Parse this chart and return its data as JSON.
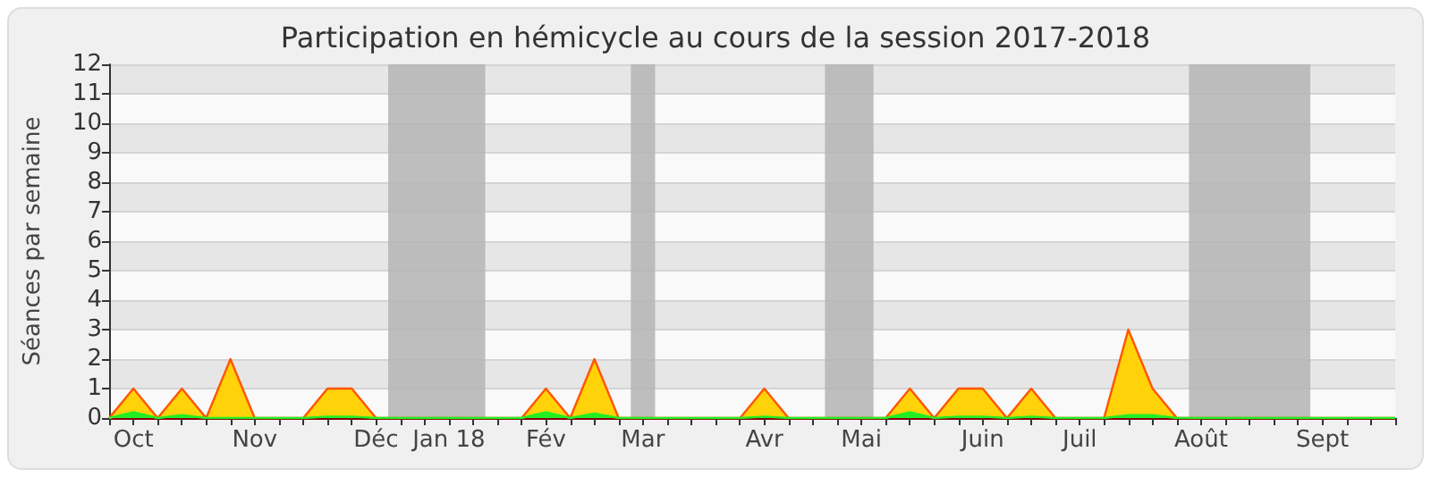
{
  "chart_data": {
    "type": "area",
    "title": "Participation en hémicycle au cours de la session 2017-2018",
    "ylabel": "Séances par semaine",
    "x": [
      "2017-09-28",
      "2017-10-05",
      "2017-10-12",
      "2017-10-19",
      "2017-10-26",
      "2017-11-02",
      "2017-11-09",
      "2017-11-16",
      "2017-11-23",
      "2017-11-30",
      "2017-12-07",
      "2017-12-14",
      "2017-12-21",
      "2017-12-28",
      "2018-01-04",
      "2018-01-11",
      "2018-01-18",
      "2018-01-25",
      "2018-02-01",
      "2018-02-08",
      "2018-02-15",
      "2018-02-22",
      "2018-03-01",
      "2018-03-08",
      "2018-03-15",
      "2018-03-22",
      "2018-03-29",
      "2018-04-05",
      "2018-04-12",
      "2018-04-19",
      "2018-04-26",
      "2018-05-03",
      "2018-05-10",
      "2018-05-17",
      "2018-05-24",
      "2018-05-31",
      "2018-06-07",
      "2018-06-14",
      "2018-06-21",
      "2018-06-28",
      "2018-07-05",
      "2018-07-12",
      "2018-07-19",
      "2018-07-26",
      "2018-08-02",
      "2018-08-09",
      "2018-08-16",
      "2018-08-23",
      "2018-08-30",
      "2018-09-06",
      "2018-09-13",
      "2018-09-20",
      "2018-09-27",
      "2018-10-04"
    ],
    "series": [
      {
        "color": "#ffd20a",
        "values": [
          0,
          1,
          0,
          1,
          0,
          2,
          0,
          0,
          0,
          1,
          1,
          0,
          0,
          0,
          0,
          0,
          0,
          0,
          1,
          0,
          2,
          0,
          0,
          0,
          0,
          0,
          0,
          1,
          0,
          0,
          0,
          0,
          0,
          1,
          0,
          1,
          1,
          0,
          1,
          0,
          0,
          0,
          3,
          1,
          0,
          0,
          0,
          0,
          0,
          0,
          0,
          0,
          0,
          0
        ]
      },
      {
        "color": "#22ee22",
        "values": [
          0,
          0.2,
          0,
          0.1,
          0,
          0,
          0,
          0,
          0,
          0.05,
          0.05,
          0,
          0,
          0,
          0,
          0,
          0,
          0,
          0.2,
          0,
          0.15,
          0,
          0,
          0,
          0,
          0,
          0,
          0.05,
          0,
          0,
          0,
          0,
          0,
          0.2,
          0,
          0.05,
          0.05,
          0,
          0.05,
          0,
          0,
          0,
          0.1,
          0.1,
          0,
          0,
          0,
          0,
          0,
          0,
          0,
          0,
          0,
          0
        ]
      }
    ],
    "xlim": [
      "2017-09-28",
      "2018-10-04"
    ],
    "xticks": [
      {
        "value": "2017-09-28",
        "label": null
      },
      {
        "value": "2017-10-05",
        "label": "Oct"
      },
      {
        "value": "2017-10-12",
        "label": null
      },
      {
        "value": "2017-10-19",
        "label": null
      },
      {
        "value": "2017-10-26",
        "label": null
      },
      {
        "value": "2017-11-02",
        "label": null
      },
      {
        "value": "2017-11-09",
        "label": "Nov"
      },
      {
        "value": "2017-11-16",
        "label": null
      },
      {
        "value": "2017-11-23",
        "label": null
      },
      {
        "value": "2017-11-30",
        "label": null
      },
      {
        "value": "2017-12-07",
        "label": null
      },
      {
        "value": "2017-12-14",
        "label": "Déc"
      },
      {
        "value": "2017-12-21",
        "label": null
      },
      {
        "value": "2017-12-28",
        "label": null
      },
      {
        "value": "2018-01-04",
        "label": "Jan 18"
      },
      {
        "value": "2018-01-11",
        "label": null
      },
      {
        "value": "2018-01-18",
        "label": null
      },
      {
        "value": "2018-01-25",
        "label": null
      },
      {
        "value": "2018-02-01",
        "label": "Fév"
      },
      {
        "value": "2018-02-08",
        "label": null
      },
      {
        "value": "2018-02-15",
        "label": null
      },
      {
        "value": "2018-02-22",
        "label": null
      },
      {
        "value": "2018-03-01",
        "label": "Mar"
      },
      {
        "value": "2018-03-08",
        "label": null
      },
      {
        "value": "2018-03-15",
        "label": null
      },
      {
        "value": "2018-03-22",
        "label": null
      },
      {
        "value": "2018-03-29",
        "label": null
      },
      {
        "value": "2018-04-05",
        "label": "Avr"
      },
      {
        "value": "2018-04-12",
        "label": null
      },
      {
        "value": "2018-04-19",
        "label": null
      },
      {
        "value": "2018-04-26",
        "label": null
      },
      {
        "value": "2018-05-03",
        "label": "Mai"
      },
      {
        "value": "2018-05-10",
        "label": null
      },
      {
        "value": "2018-05-17",
        "label": null
      },
      {
        "value": "2018-05-24",
        "label": null
      },
      {
        "value": "2018-05-31",
        "label": null
      },
      {
        "value": "2018-06-07",
        "label": "Juin"
      },
      {
        "value": "2018-06-14",
        "label": null
      },
      {
        "value": "2018-06-21",
        "label": null
      },
      {
        "value": "2018-06-28",
        "label": null
      },
      {
        "value": "2018-07-05",
        "label": "Juil"
      },
      {
        "value": "2018-07-12",
        "label": null
      },
      {
        "value": "2018-07-19",
        "label": null
      },
      {
        "value": "2018-07-26",
        "label": null
      },
      {
        "value": "2018-08-02",
        "label": null
      },
      {
        "value": "2018-08-09",
        "label": "Août"
      },
      {
        "value": "2018-08-16",
        "label": null
      },
      {
        "value": "2018-08-23",
        "label": null
      },
      {
        "value": "2018-08-30",
        "label": null
      },
      {
        "value": "2018-09-06",
        "label": null
      },
      {
        "value": "2018-09-13",
        "label": "Sept"
      },
      {
        "value": "2018-09-20",
        "label": null
      },
      {
        "value": "2018-09-27",
        "label": null
      },
      {
        "value": "2018-10-04",
        "label": null
      }
    ],
    "ylim": [
      0,
      12
    ],
    "yticks": [
      0,
      1,
      2,
      3,
      4,
      5,
      6,
      7,
      8,
      9,
      10,
      11,
      12
    ],
    "grid": "y",
    "marker": "none",
    "bands": [
      {
        "axis": "x",
        "from": "2017-12-17T12:00",
        "to": "2018-01-14T12:00",
        "color": "#b4b4b4"
      },
      {
        "axis": "x",
        "from": "2018-02-25T12:00",
        "to": "2018-03-04T12:00",
        "color": "#b4b4b4"
      },
      {
        "axis": "x",
        "from": "2018-04-22T12:00",
        "to": "2018-05-06T12:00",
        "color": "#b4b4b4"
      },
      {
        "axis": "x",
        "from": "2018-08-05T12:00",
        "to": "2018-09-09T12:00",
        "color": "#b4b4b4"
      }
    ]
  }
}
